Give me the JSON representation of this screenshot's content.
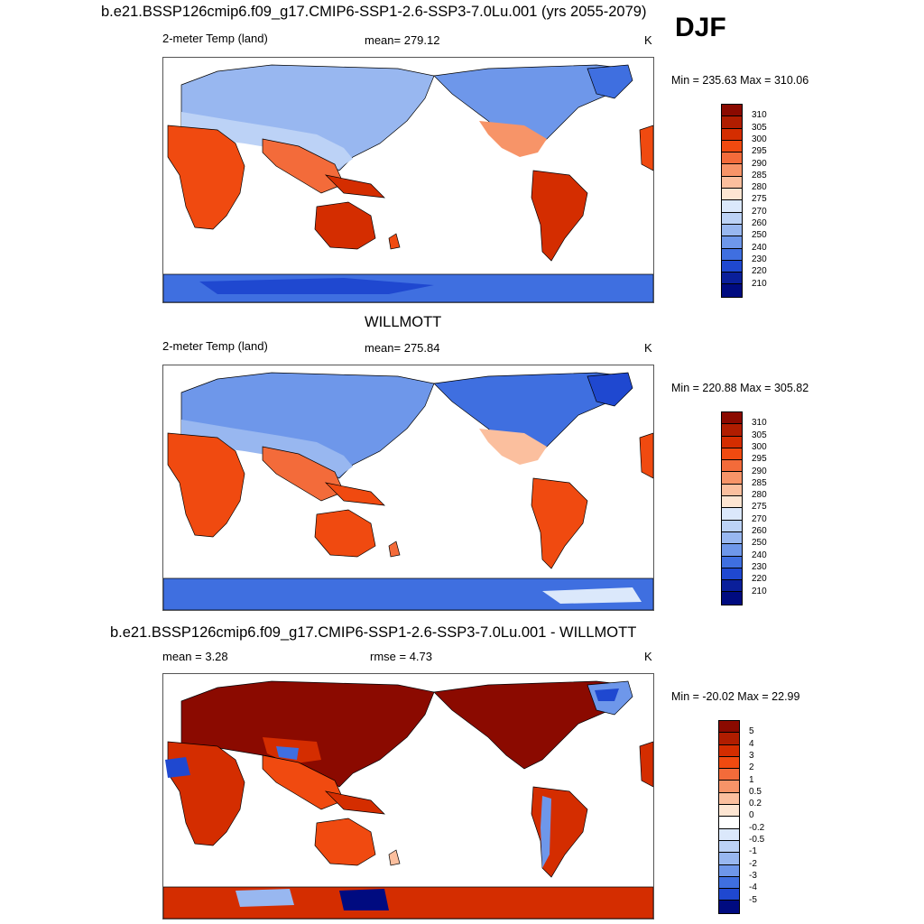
{
  "header": {
    "run_title": "b.e21.BSSP126cmip6.f09_g17.CMIP6-SSP1-2.6-SSP3-7.0Lu.001 (yrs 2055-2079)",
    "season": "DJF"
  },
  "panel1": {
    "variable": "2-meter Temp (land)",
    "mean": "mean= 279.12",
    "units": "K",
    "minmax": "Min = 235.63 Max = 310.06",
    "levels": [
      "310",
      "305",
      "300",
      "295",
      "290",
      "285",
      "280",
      "275",
      "270",
      "260",
      "250",
      "240",
      "230",
      "220",
      "210"
    ]
  },
  "panel2": {
    "title": "WILLMOTT",
    "variable": "2-meter Temp (land)",
    "mean": "mean= 275.84",
    "units": "K",
    "minmax": "Min = 220.88 Max = 305.82",
    "levels": [
      "310",
      "305",
      "300",
      "295",
      "290",
      "285",
      "280",
      "275",
      "270",
      "260",
      "250",
      "240",
      "230",
      "220",
      "210"
    ]
  },
  "panel3": {
    "title": "b.e21.BSSP126cmip6.f09_g17.CMIP6-SSP1-2.6-SSP3-7.0Lu.001 - WILLMOTT",
    "mean": "mean =   3.28",
    "rmse": "rmse =   4.73",
    "units": "K",
    "minmax": "Min = -20.02 Max =  22.99",
    "levels": [
      "5",
      "4",
      "3",
      "2",
      "1",
      "0.5",
      "0.2",
      "0",
      "-0.2",
      "-0.5",
      "-1",
      "-2",
      "-3",
      "-4",
      "-5"
    ]
  },
  "colors": {
    "abs_scale": [
      "#8b0a00",
      "#b01d00",
      "#d42d00",
      "#f04a10",
      "#f36b3a",
      "#f79468",
      "#fbbf9e",
      "#fde5d2",
      "#dbe8fb",
      "#bcd2f6",
      "#98b7f0",
      "#6e97ea",
      "#3f6fe0",
      "#1f48d0",
      "#0a1f9a",
      "#000b80"
    ],
    "diff_scale": [
      "#8b0a00",
      "#b01d00",
      "#d42d00",
      "#f04a10",
      "#f36b3a",
      "#f79468",
      "#fbbf9e",
      "#fde5d2",
      "#ffffff",
      "#dbe8fb",
      "#bcd2f6",
      "#98b7f0",
      "#6e97ea",
      "#3f6fe0",
      "#1f48d0",
      "#000b80"
    ]
  }
}
